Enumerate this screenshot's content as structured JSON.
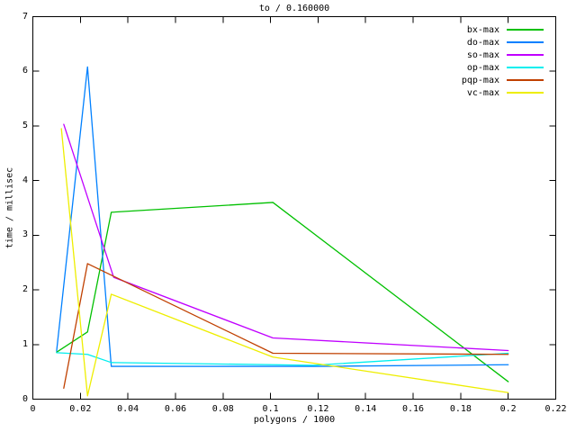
{
  "chart_data": {
    "type": "line",
    "title": "to / 0.160000",
    "xlabel": "polygons / 1000",
    "ylabel": "time / millisec",
    "xlim": [
      0,
      0.22
    ],
    "ylim": [
      0,
      7
    ],
    "grid": false,
    "legend_position": "top-right-inside",
    "background_color": "#ffffff",
    "axis_color": "#000000",
    "text_color": "#000000",
    "xticks": {
      "values": [
        0,
        0.02,
        0.04,
        0.06,
        0.08,
        0.1,
        0.12,
        0.14,
        0.16,
        0.18,
        0.2,
        0.22
      ],
      "labels": [
        "0",
        "0.02",
        "0.04",
        "0.06",
        "0.08",
        "0.1",
        "0.12",
        "0.14",
        "0.16",
        "0.18",
        "0.2",
        "0.22"
      ]
    },
    "yticks": {
      "values": [
        0,
        1,
        2,
        3,
        4,
        5,
        6,
        7
      ],
      "labels": [
        "0",
        "1",
        "2",
        "3",
        "4",
        "5",
        "6",
        "7"
      ]
    },
    "series": [
      {
        "name": "bx-max",
        "color": "#00c000",
        "points": [
          [
            0.01,
            0.86
          ],
          [
            0.023,
            1.23
          ],
          [
            0.033,
            3.42
          ],
          [
            0.101,
            3.6
          ],
          [
            0.2,
            0.32
          ]
        ]
      },
      {
        "name": "do-max",
        "color": "#0080ff",
        "points": [
          [
            0.01,
            0.88
          ],
          [
            0.023,
            6.08
          ],
          [
            0.033,
            0.6
          ],
          [
            0.12,
            0.6
          ],
          [
            0.2,
            0.63
          ]
        ]
      },
      {
        "name": "so-max",
        "color": "#c000ff",
        "points": [
          [
            0.013,
            5.03
          ],
          [
            0.034,
            2.23
          ],
          [
            0.101,
            1.12
          ],
          [
            0.2,
            0.89
          ]
        ]
      },
      {
        "name": "op-max",
        "color": "#00eeee",
        "points": [
          [
            0.01,
            0.85
          ],
          [
            0.023,
            0.82
          ],
          [
            0.033,
            0.67
          ],
          [
            0.118,
            0.62
          ],
          [
            0.2,
            0.84
          ]
        ]
      },
      {
        "name": "pqp-max",
        "color": "#c04000",
        "points": [
          [
            0.013,
            0.2
          ],
          [
            0.023,
            2.48
          ],
          [
            0.101,
            0.84
          ],
          [
            0.2,
            0.82
          ]
        ]
      },
      {
        "name": "vc-max",
        "color": "#eeee00",
        "points": [
          [
            0.012,
            4.95
          ],
          [
            0.023,
            0.06
          ],
          [
            0.033,
            1.92
          ],
          [
            0.101,
            0.77
          ],
          [
            0.2,
            0.12
          ]
        ]
      }
    ]
  }
}
